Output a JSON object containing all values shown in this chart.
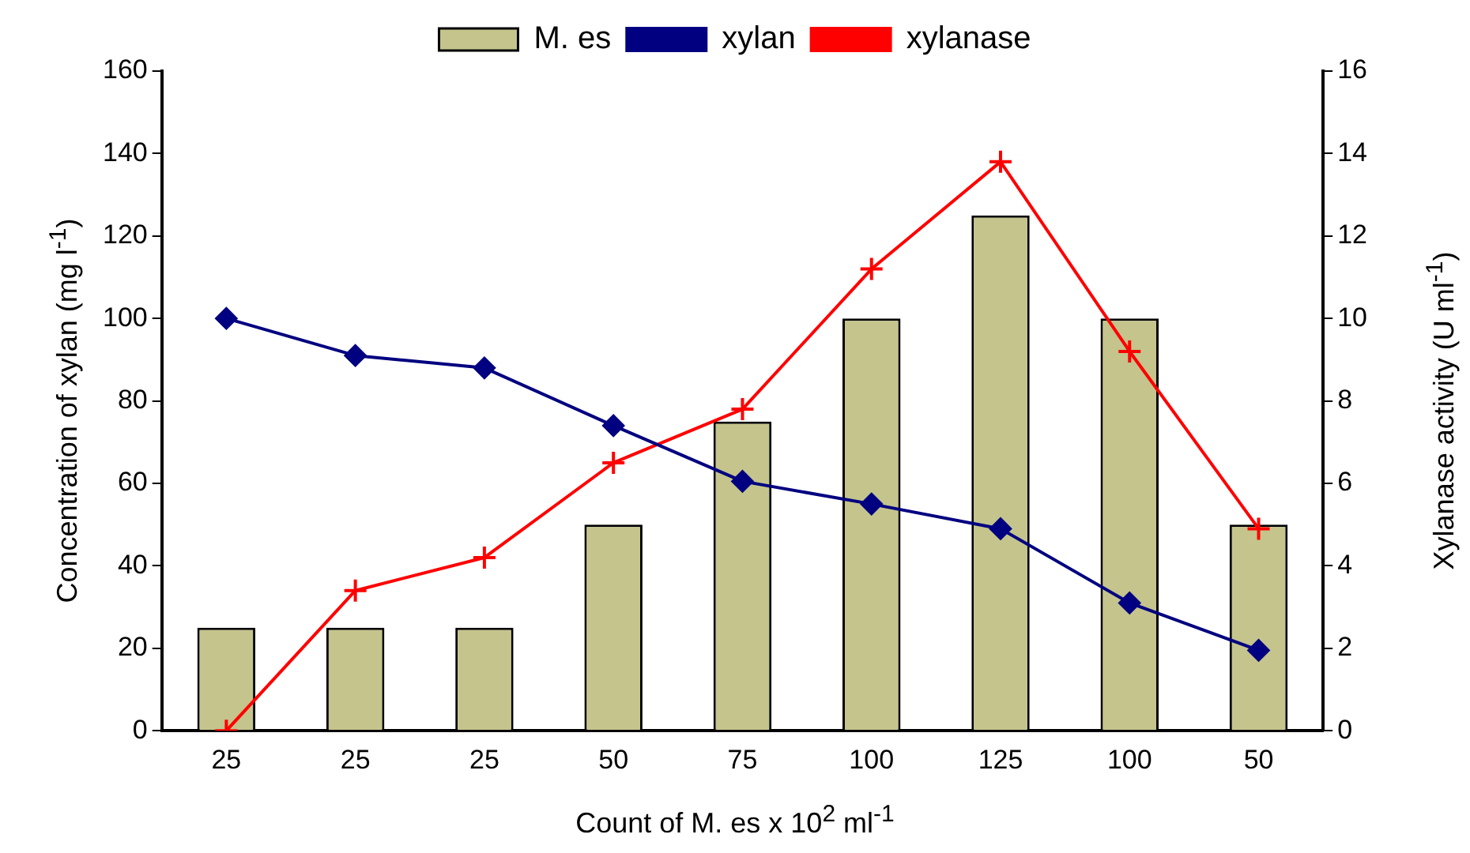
{
  "chart_data": {
    "type": "bar",
    "categories": [
      "25",
      "25",
      "25",
      "50",
      "75",
      "100",
      "125",
      "100",
      "50"
    ],
    "xlabel": "Count of M. es x 10$^{2}$ ml$^{-1}$",
    "ylabel": "Concentration of xylan (mg l$^{-1}$)",
    "y2label": "Xylanase activity (U ml$^{-1}$)",
    "series": [
      {
        "name": "M. es",
        "color": "#c4c48c",
        "values": [
          25,
          25,
          25,
          50,
          75,
          100,
          125,
          100,
          50
        ]
      },
      {
        "name": "xylan",
        "type": "line",
        "color": "#000080",
        "marker": "diamond",
        "values": [
          100,
          91,
          88,
          74,
          60.5,
          55,
          49,
          31,
          19.5
        ]
      },
      {
        "name": "xylanase",
        "type": "line",
        "axis": "y2",
        "color": "#ff0000",
        "marker": "cross",
        "values": [
          0,
          3.4,
          4.2,
          6.5,
          7.8,
          11.2,
          13.8,
          9.2,
          4.9
        ]
      }
    ],
    "ylim": [
      0,
      160
    ],
    "yticks": [
      0,
      20,
      40,
      60,
      80,
      100,
      120,
      140,
      160
    ],
    "y2lim": [
      0,
      16
    ],
    "y2ticks": [
      0,
      2,
      4,
      6,
      8,
      10,
      12,
      14,
      16
    ],
    "legend": "top",
    "grid": false
  }
}
